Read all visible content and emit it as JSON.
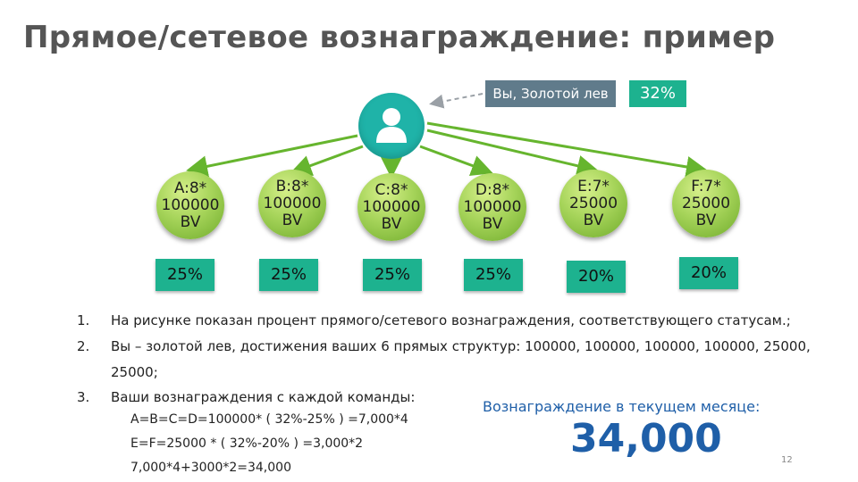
{
  "slide": {
    "title": "Прямое/сетевое вознаграждение: пример",
    "you_label": "Вы, Золотой лев",
    "you_percent": "32%",
    "page_number": "12"
  },
  "nodes": [
    {
      "name": "A:8*",
      "volume": "100000",
      "unit": "BV",
      "percent": "25%"
    },
    {
      "name": "B:8*",
      "volume": "100000",
      "unit": "BV",
      "percent": "25%"
    },
    {
      "name": "C:8*",
      "volume": "100000",
      "unit": "BV",
      "percent": "25%"
    },
    {
      "name": "D:8*",
      "volume": "100000",
      "unit": "BV",
      "percent": "25%"
    },
    {
      "name": "E:7*",
      "volume": "25000",
      "unit": "BV",
      "percent": "20%"
    },
    {
      "name": "F:7*",
      "volume": "25000",
      "unit": "BV",
      "percent": "20%"
    }
  ],
  "list": [
    {
      "num": "1.",
      "lines": [
        "На рисунке показан процент прямого/сетевого вознаграждения, соответствующего статусам.;"
      ]
    },
    {
      "num": "2.",
      "lines": [
        "Вы – золотой лев, достижения ваших 6 прямых структур: 100000, 100000, 100000, 100000, 25000,",
        "25000;"
      ]
    },
    {
      "num": "3.",
      "lines": [
        "Ваши вознаграждения с каждой команды:"
      ]
    }
  ],
  "calculations": [
    "A=B=C=D=100000* ( 32%-25% ) =7,000*4",
    "E=F=25000 * ( 32%-20% ) =3,000*2",
    "7,000*4+3000*2=34,000"
  ],
  "reward": {
    "label": "Вознаграждение в текущем месяце:",
    "value": "34,000"
  },
  "colors": {
    "teal": "#1db28f",
    "avatar": "#1fb3a8",
    "node_green": "#a6d45a",
    "arrow_green": "#66b52e",
    "label_gray": "#607b8b",
    "accent_blue": "#1f5fa8"
  }
}
